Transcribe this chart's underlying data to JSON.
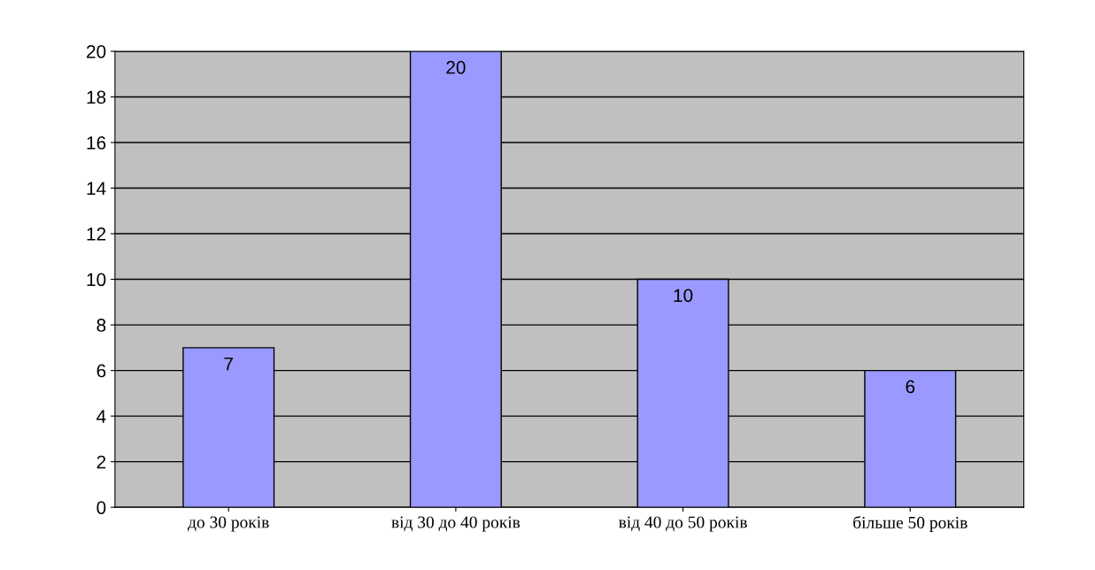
{
  "chart_data": {
    "type": "bar",
    "categories": [
      "до 30 років",
      "від 30 до 40 років",
      "від 40 до 50 років",
      "більше 50 років"
    ],
    "values": [
      7,
      20,
      10,
      6
    ],
    "color": "#9999ff",
    "data_labels": true,
    "ylim": [
      0,
      20
    ],
    "yticks": [
      0,
      2,
      4,
      6,
      8,
      10,
      12,
      14,
      16,
      18,
      20
    ],
    "grid": "y",
    "legend": false
  }
}
